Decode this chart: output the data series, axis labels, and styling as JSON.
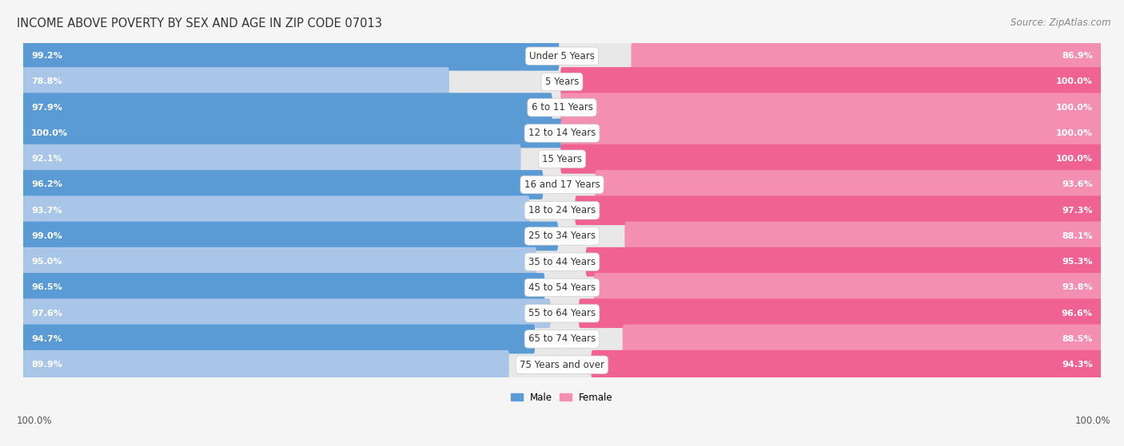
{
  "title": "INCOME ABOVE POVERTY BY SEX AND AGE IN ZIP CODE 07013",
  "source": "Source: ZipAtlas.com",
  "categories": [
    "Under 5 Years",
    "5 Years",
    "6 to 11 Years",
    "12 to 14 Years",
    "15 Years",
    "16 and 17 Years",
    "18 to 24 Years",
    "25 to 34 Years",
    "35 to 44 Years",
    "45 to 54 Years",
    "55 to 64 Years",
    "65 to 74 Years",
    "75 Years and over"
  ],
  "male_values": [
    99.2,
    78.8,
    97.9,
    100.0,
    92.1,
    96.2,
    93.7,
    99.0,
    95.0,
    96.5,
    97.6,
    94.7,
    89.9
  ],
  "female_values": [
    86.9,
    100.0,
    100.0,
    100.0,
    100.0,
    93.6,
    97.3,
    88.1,
    95.3,
    93.8,
    96.6,
    88.5,
    94.3
  ],
  "male_colors": [
    "#5b9bd5",
    "#a9c6e8",
    "#5b9bd5",
    "#5b9bd5",
    "#a9c6e8",
    "#5b9bd5",
    "#a9c6e8",
    "#5b9bd5",
    "#a9c6e8",
    "#5b9bd5",
    "#a9c6e8",
    "#5b9bd5",
    "#a9c6e8"
  ],
  "female_colors": [
    "#f48fb1",
    "#f06292",
    "#f48fb1",
    "#f48fb1",
    "#f06292",
    "#f48fb1",
    "#f06292",
    "#f48fb1",
    "#f06292",
    "#f48fb1",
    "#f06292",
    "#f48fb1",
    "#f06292"
  ],
  "male_label": "Male",
  "female_label": "Female",
  "male_legend_color": "#5b9bd5",
  "female_legend_color": "#f48fb1",
  "bg_color": "#f5f5f5",
  "row_bg_color": "#e8e8e8",
  "bar_track_color": "#dcdcdc",
  "title_fontsize": 10.5,
  "label_fontsize": 8.5,
  "value_fontsize": 8.0,
  "footer_fontsize": 8.5,
  "source_fontsize": 8.5
}
